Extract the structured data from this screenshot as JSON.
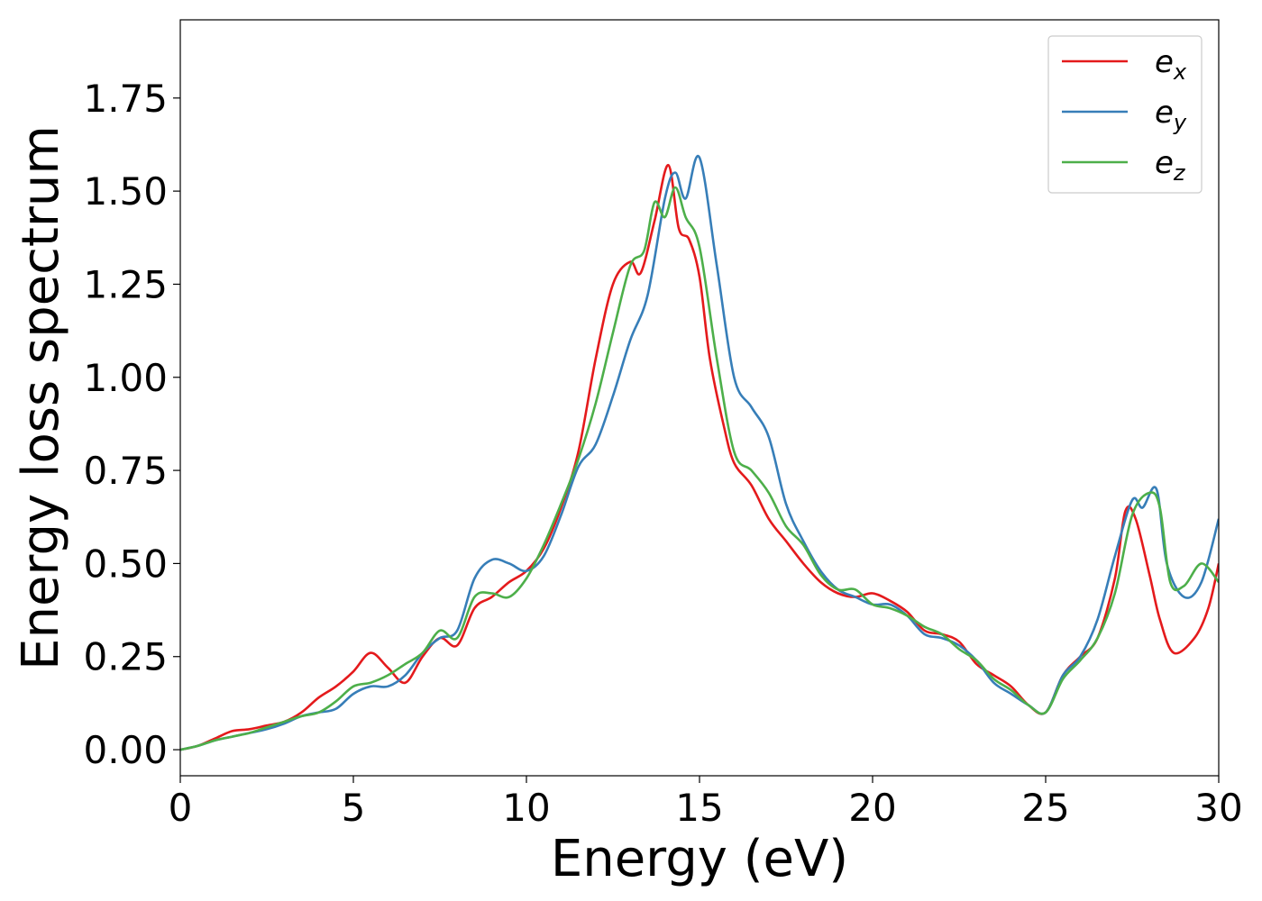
{
  "chart_data": {
    "type": "line",
    "title": "",
    "xlabel": "Energy (eV)",
    "ylabel": "Energy loss spectrum",
    "xlim": [
      0,
      30
    ],
    "ylim": [
      -0.07,
      1.96
    ],
    "xticks": [
      0,
      5,
      10,
      15,
      20,
      25,
      30
    ],
    "xtick_labels": [
      "0",
      "5",
      "10",
      "15",
      "20",
      "25",
      "30"
    ],
    "yticks": [
      0.0,
      0.25,
      0.5,
      0.75,
      1.0,
      1.25,
      1.5,
      1.75
    ],
    "ytick_labels": [
      "0.00",
      "0.25",
      "0.50",
      "0.75",
      "1.00",
      "1.25",
      "1.50",
      "1.75"
    ],
    "grid": false,
    "legend_position": "top-right",
    "series": [
      {
        "name": "e",
        "subscript": "x",
        "color": "#e41a1c",
        "points": [
          [
            0,
            0.0
          ],
          [
            0.5,
            0.01
          ],
          [
            1,
            0.03
          ],
          [
            1.5,
            0.05
          ],
          [
            2,
            0.055
          ],
          [
            2.5,
            0.065
          ],
          [
            3,
            0.075
          ],
          [
            3.5,
            0.1
          ],
          [
            4,
            0.14
          ],
          [
            4.5,
            0.17
          ],
          [
            5,
            0.21
          ],
          [
            5.5,
            0.26
          ],
          [
            6,
            0.22
          ],
          [
            6.5,
            0.18
          ],
          [
            7,
            0.25
          ],
          [
            7.5,
            0.3
          ],
          [
            8,
            0.28
          ],
          [
            8.5,
            0.38
          ],
          [
            9,
            0.41
          ],
          [
            9.5,
            0.45
          ],
          [
            10,
            0.48
          ],
          [
            10.5,
            0.54
          ],
          [
            11,
            0.65
          ],
          [
            11.5,
            0.8
          ],
          [
            12,
            1.05
          ],
          [
            12.5,
            1.25
          ],
          [
            13,
            1.31
          ],
          [
            13.3,
            1.28
          ],
          [
            13.7,
            1.42
          ],
          [
            14.1,
            1.57
          ],
          [
            14.4,
            1.4
          ],
          [
            14.7,
            1.37
          ],
          [
            15,
            1.27
          ],
          [
            15.3,
            1.05
          ],
          [
            15.7,
            0.87
          ],
          [
            16,
            0.77
          ],
          [
            16.5,
            0.71
          ],
          [
            17,
            0.62
          ],
          [
            17.5,
            0.56
          ],
          [
            18,
            0.5
          ],
          [
            18.5,
            0.45
          ],
          [
            19,
            0.42
          ],
          [
            19.5,
            0.41
          ],
          [
            20,
            0.42
          ],
          [
            20.5,
            0.4
          ],
          [
            21,
            0.37
          ],
          [
            21.5,
            0.32
          ],
          [
            22,
            0.31
          ],
          [
            22.5,
            0.29
          ],
          [
            23,
            0.23
          ],
          [
            23.5,
            0.2
          ],
          [
            24,
            0.17
          ],
          [
            24.5,
            0.12
          ],
          [
            25,
            0.1
          ],
          [
            25.5,
            0.2
          ],
          [
            26,
            0.25
          ],
          [
            26.5,
            0.3
          ],
          [
            27,
            0.46
          ],
          [
            27.3,
            0.64
          ],
          [
            27.6,
            0.62
          ],
          [
            28,
            0.47
          ],
          [
            28.3,
            0.35
          ],
          [
            28.7,
            0.26
          ],
          [
            29.3,
            0.3
          ],
          [
            29.7,
            0.38
          ],
          [
            30,
            0.5
          ]
        ]
      },
      {
        "name": "e",
        "subscript": "y",
        "color": "#377eb8",
        "points": [
          [
            0,
            0.0
          ],
          [
            0.5,
            0.01
          ],
          [
            1,
            0.025
          ],
          [
            1.5,
            0.035
          ],
          [
            2,
            0.045
          ],
          [
            2.5,
            0.055
          ],
          [
            3,
            0.07
          ],
          [
            3.5,
            0.09
          ],
          [
            4,
            0.1
          ],
          [
            4.5,
            0.11
          ],
          [
            5,
            0.15
          ],
          [
            5.5,
            0.17
          ],
          [
            6,
            0.17
          ],
          [
            6.5,
            0.2
          ],
          [
            7,
            0.26
          ],
          [
            7.5,
            0.3
          ],
          [
            8,
            0.32
          ],
          [
            8.5,
            0.46
          ],
          [
            9,
            0.51
          ],
          [
            9.5,
            0.5
          ],
          [
            10,
            0.48
          ],
          [
            10.5,
            0.52
          ],
          [
            11,
            0.63
          ],
          [
            11.5,
            0.76
          ],
          [
            12,
            0.82
          ],
          [
            12.5,
            0.95
          ],
          [
            13,
            1.1
          ],
          [
            13.5,
            1.22
          ],
          [
            14,
            1.48
          ],
          [
            14.3,
            1.55
          ],
          [
            14.6,
            1.48
          ],
          [
            15,
            1.59
          ],
          [
            15.5,
            1.3
          ],
          [
            16,
            1.0
          ],
          [
            16.5,
            0.92
          ],
          [
            17,
            0.84
          ],
          [
            17.5,
            0.66
          ],
          [
            18,
            0.56
          ],
          [
            18.5,
            0.48
          ],
          [
            19,
            0.43
          ],
          [
            19.5,
            0.41
          ],
          [
            20,
            0.39
          ],
          [
            20.5,
            0.39
          ],
          [
            21,
            0.36
          ],
          [
            21.5,
            0.31
          ],
          [
            22,
            0.3
          ],
          [
            22.5,
            0.28
          ],
          [
            23,
            0.24
          ],
          [
            23.5,
            0.18
          ],
          [
            24,
            0.15
          ],
          [
            24.5,
            0.12
          ],
          [
            25,
            0.1
          ],
          [
            25.5,
            0.2
          ],
          [
            26,
            0.25
          ],
          [
            26.5,
            0.35
          ],
          [
            27,
            0.52
          ],
          [
            27.5,
            0.67
          ],
          [
            27.8,
            0.65
          ],
          [
            28.2,
            0.7
          ],
          [
            28.5,
            0.5
          ],
          [
            29,
            0.41
          ],
          [
            29.5,
            0.45
          ],
          [
            30,
            0.62
          ]
        ]
      },
      {
        "name": "e",
        "subscript": "z",
        "color": "#4daf4a",
        "points": [
          [
            0,
            0.0
          ],
          [
            0.5,
            0.01
          ],
          [
            1,
            0.025
          ],
          [
            1.5,
            0.035
          ],
          [
            2,
            0.045
          ],
          [
            2.5,
            0.06
          ],
          [
            3,
            0.075
          ],
          [
            3.5,
            0.09
          ],
          [
            4,
            0.1
          ],
          [
            4.5,
            0.13
          ],
          [
            5,
            0.17
          ],
          [
            5.5,
            0.18
          ],
          [
            6,
            0.2
          ],
          [
            6.5,
            0.23
          ],
          [
            7,
            0.26
          ],
          [
            7.5,
            0.32
          ],
          [
            8,
            0.3
          ],
          [
            8.5,
            0.41
          ],
          [
            9,
            0.42
          ],
          [
            9.5,
            0.41
          ],
          [
            10,
            0.46
          ],
          [
            10.5,
            0.55
          ],
          [
            11,
            0.66
          ],
          [
            11.5,
            0.78
          ],
          [
            12,
            0.93
          ],
          [
            12.5,
            1.12
          ],
          [
            13,
            1.3
          ],
          [
            13.4,
            1.34
          ],
          [
            13.7,
            1.47
          ],
          [
            14,
            1.43
          ],
          [
            14.3,
            1.51
          ],
          [
            14.6,
            1.43
          ],
          [
            15,
            1.35
          ],
          [
            15.5,
            1.05
          ],
          [
            16,
            0.8
          ],
          [
            16.5,
            0.75
          ],
          [
            17,
            0.69
          ],
          [
            17.5,
            0.6
          ],
          [
            18,
            0.55
          ],
          [
            18.5,
            0.47
          ],
          [
            19,
            0.43
          ],
          [
            19.5,
            0.43
          ],
          [
            20,
            0.39
          ],
          [
            20.5,
            0.38
          ],
          [
            21,
            0.36
          ],
          [
            21.5,
            0.33
          ],
          [
            22,
            0.31
          ],
          [
            22.5,
            0.27
          ],
          [
            23,
            0.24
          ],
          [
            23.5,
            0.19
          ],
          [
            24,
            0.16
          ],
          [
            24.5,
            0.12
          ],
          [
            25,
            0.1
          ],
          [
            25.5,
            0.19
          ],
          [
            26,
            0.24
          ],
          [
            26.5,
            0.3
          ],
          [
            27,
            0.42
          ],
          [
            27.5,
            0.63
          ],
          [
            28,
            0.69
          ],
          [
            28.3,
            0.65
          ],
          [
            28.6,
            0.45
          ],
          [
            29,
            0.44
          ],
          [
            29.5,
            0.5
          ],
          [
            30,
            0.45
          ]
        ]
      }
    ]
  }
}
